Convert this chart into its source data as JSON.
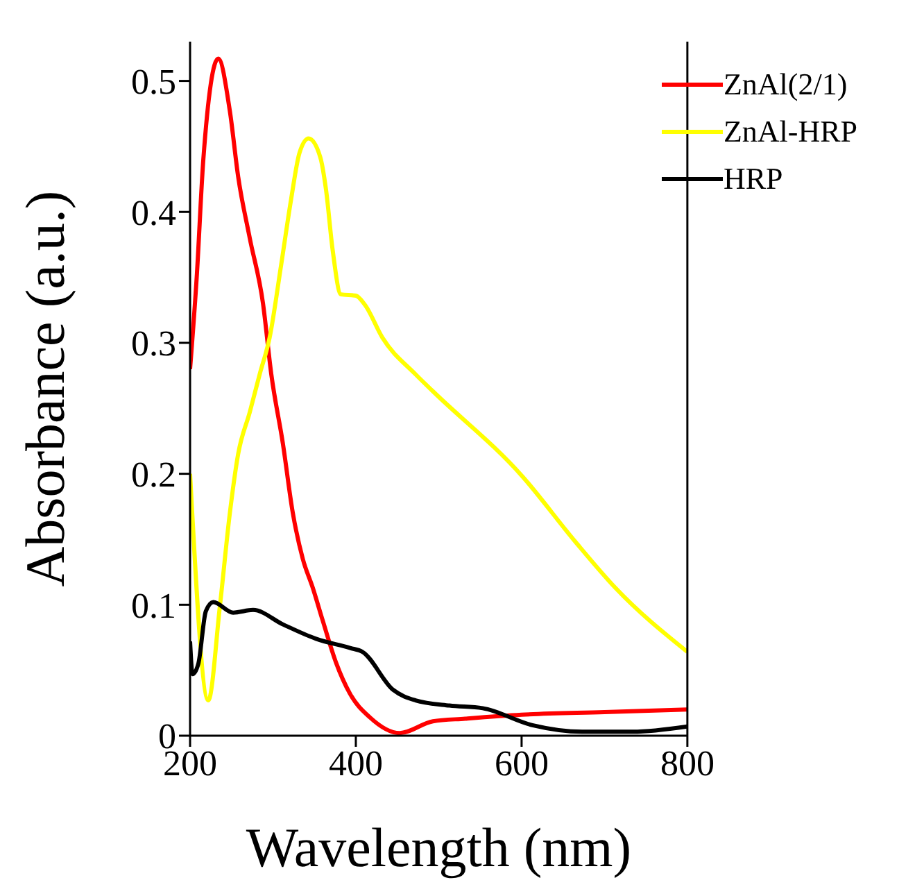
{
  "chart_data": {
    "type": "line",
    "xlabel": "Wavelength (nm)",
    "ylabel": "Absorbance (a.u.)",
    "xlim": [
      200,
      800
    ],
    "ylim": [
      0,
      0.53
    ],
    "xticks": [
      200,
      400,
      600,
      800
    ],
    "yticks": [
      0,
      0.1,
      0.2,
      0.3,
      0.4,
      0.5
    ],
    "legend": "top right",
    "grid": false,
    "series": [
      {
        "name": "ZnAl(2/1)",
        "color": "#ff0000",
        "x": [
          200,
          208,
          216,
          234,
          248,
          258,
          272,
          288,
          298,
          312,
          324,
          336,
          348,
          360,
          376,
          393,
          417,
          453,
          493,
          532,
          600,
          700,
          800
        ],
        "values": [
          0.28,
          0.35,
          0.44,
          0.517,
          0.477,
          0.427,
          0.38,
          0.33,
          0.276,
          0.223,
          0.17,
          0.135,
          0.113,
          0.088,
          0.056,
          0.032,
          0.014,
          0.002,
          0.011,
          0.013,
          0.016,
          0.018,
          0.02
        ]
      },
      {
        "name": "ZnAl-HRP",
        "color": "#ffff00",
        "x": [
          200,
          222,
          236,
          248,
          258,
          272,
          284,
          296,
          310,
          322,
          332,
          343,
          357,
          364,
          372,
          382,
          400,
          411,
          432,
          472,
          493,
          601,
          665,
          713,
          800
        ],
        "values": [
          0.2,
          0.027,
          0.099,
          0.17,
          0.215,
          0.247,
          0.276,
          0.304,
          0.36,
          0.41,
          0.445,
          0.456,
          0.442,
          0.417,
          0.371,
          0.337,
          0.336,
          0.329,
          0.304,
          0.276,
          0.263,
          0.198,
          0.148,
          0.113,
          0.064
        ]
      },
      {
        "name": "HRP",
        "color": "#000000",
        "x": [
          200,
          203,
          210,
          219,
          228,
          252,
          276,
          312,
          352,
          393,
          408,
          445,
          472,
          513,
          553,
          613,
          673,
          734,
          800
        ],
        "values": [
          0.072,
          0.047,
          0.055,
          0.095,
          0.102,
          0.094,
          0.096,
          0.085,
          0.074,
          0.067,
          0.064,
          0.035,
          0.027,
          0.023,
          0.021,
          0.008,
          0.003,
          0.003,
          0.007
        ]
      }
    ]
  }
}
